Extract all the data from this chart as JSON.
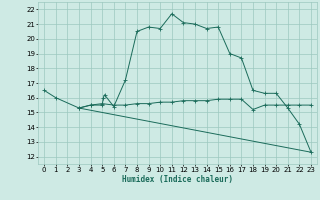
{
  "xlabel": "Humidex (Indice chaleur)",
  "background_color": "#ceeae4",
  "grid_color": "#9cc8bf",
  "line_color": "#1a6b5a",
  "xlim": [
    -0.5,
    23.5
  ],
  "ylim": [
    11.5,
    22.5
  ],
  "xticks": [
    0,
    1,
    2,
    3,
    4,
    5,
    6,
    7,
    8,
    9,
    10,
    11,
    12,
    13,
    14,
    15,
    16,
    17,
    18,
    19,
    20,
    21,
    22,
    23
  ],
  "yticks": [
    12,
    13,
    14,
    15,
    16,
    17,
    18,
    19,
    20,
    21,
    22
  ],
  "series1_x": [
    0,
    1,
    3,
    4,
    5,
    5.1,
    5.2,
    6,
    7,
    8,
    9,
    10,
    11,
    12,
    13,
    14,
    15,
    16,
    17,
    18,
    19,
    20,
    21,
    22,
    23
  ],
  "series1_y": [
    16.5,
    16.0,
    15.3,
    15.5,
    15.5,
    16.0,
    16.2,
    15.4,
    17.2,
    20.5,
    20.8,
    20.7,
    21.7,
    21.1,
    21.0,
    20.7,
    20.8,
    19.0,
    18.7,
    16.5,
    16.3,
    16.3,
    15.3,
    14.2,
    12.3
  ],
  "series2_x": [
    3,
    4,
    5,
    6,
    7,
    8,
    9,
    10,
    11,
    12,
    13,
    14,
    15,
    16,
    17,
    18,
    19,
    20,
    21,
    22,
    23
  ],
  "series2_y": [
    15.3,
    15.5,
    15.6,
    15.5,
    15.5,
    15.6,
    15.6,
    15.7,
    15.7,
    15.8,
    15.8,
    15.8,
    15.9,
    15.9,
    15.9,
    15.2,
    15.5,
    15.5,
    15.5,
    15.5,
    15.5
  ],
  "series3_x": [
    3,
    23
  ],
  "series3_y": [
    15.3,
    12.3
  ]
}
